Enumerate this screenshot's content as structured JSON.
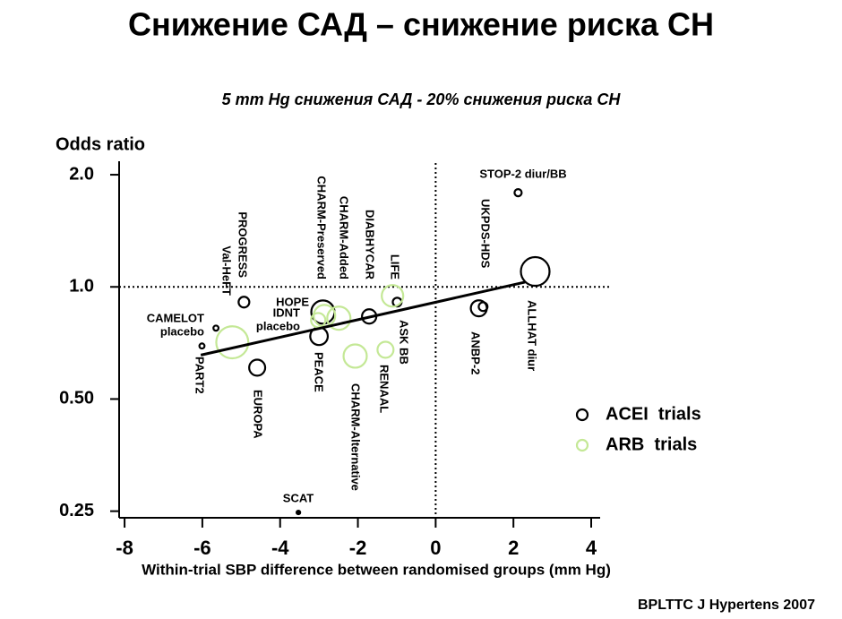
{
  "chart_data": {
    "type": "scatter",
    "title": "Снижение САД – снижение риска СН",
    "subtitle": "5 mm Hg снижения САД - 20% снижения риска СН",
    "y_label": "Odds ratio",
    "x_label": "Within-trial SBP difference between randomised groups (mm Hg)",
    "source": "BPLTTC J Hypertens 2007",
    "xlim": [
      -8.14,
      4.23
    ],
    "xticks": [
      -8,
      -6,
      -4,
      -2,
      0,
      2,
      4
    ],
    "ylim": [
      0.24,
      2.15
    ],
    "log_y": true,
    "yticks": [
      0.25,
      {
        "value": 0.5,
        "label": "0.50"
      },
      {
        "value": 1,
        "label": "1.0"
      },
      {
        "value": 2,
        "label": "2.0"
      }
    ],
    "hline": 1,
    "vline": 0,
    "legend": "right",
    "series": [
      {
        "name": "ACEI  trials",
        "color": "#000000",
        "labels": [
          "STOP-2 diur/BB",
          "ALLHAT diur",
          "UKPDS-HDS",
          "ANBP-2",
          "ASK BB",
          "DIABHYCAR",
          "HOPE",
          "PEACE",
          "PROGRESS",
          "EUROPA",
          [
            "CAMELOT",
            "placebo"
          ],
          "PART2",
          "SCAT"
        ],
        "x": [
          2.12,
          2.56,
          1.22,
          1.11,
          -0.99,
          -1.71,
          -2.9,
          -3.0,
          -4.93,
          -4.59,
          -5.65,
          -6.01,
          -3.53
        ],
        "values": [
          1.79,
          1.1,
          0.885,
          0.876,
          0.91,
          0.833,
          0.856,
          0.737,
          0.91,
          0.607,
          0.775,
          0.694,
          0.248
        ],
        "sizes": [
          1,
          16,
          1.5,
          5,
          1.5,
          4,
          10.5,
          6,
          2.25,
          5,
          0.5,
          0.5,
          0.25
        ]
      },
      {
        "name": "ARB  trials",
        "color": "#c4e896",
        "labels": [
          "LIFE",
          "RENAAL",
          "CHARM-Alternative",
          "CHARM-Added",
          "CHARM-Preserved",
          [
            "IDNT",
            "placebo"
          ],
          "Val-HeFT"
        ],
        "x": [
          -1.11,
          -1.29,
          -2.07,
          -2.49,
          -2.86,
          -3.02,
          -5.23
        ],
        "values": [
          0.946,
          0.678,
          0.652,
          0.824,
          0.837,
          0.814,
          0.71
        ],
        "sizes": [
          9,
          5,
          10.5,
          10.5,
          9,
          4,
          20
        ]
      }
    ],
    "trend_line": {
      "x": [
        -6.04,
        2.3
      ],
      "values": [
        0.656,
        1.03
      ]
    }
  }
}
